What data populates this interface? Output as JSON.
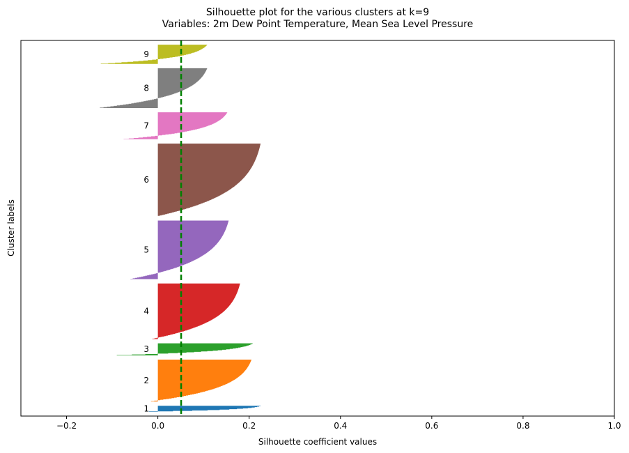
{
  "chart_data": {
    "type": "silhouette",
    "title_line1": "Silhouette plot for the various clusters at k=9",
    "title_line2": "Variables: 2m Dew Point Temperature, Mean Sea Level Pressure",
    "xlabel": "Silhouette coefficient values",
    "ylabel": "Cluster labels",
    "xlim": [
      -0.3,
      1.0
    ],
    "xticks": [
      -0.2,
      0.0,
      0.2,
      0.4,
      0.6,
      0.8,
      1.0
    ],
    "xtick_labels": [
      "−0.2",
      "0.0",
      "0.2",
      "0.4",
      "0.6",
      "0.8",
      "1.0"
    ],
    "average_silhouette": 0.051,
    "average_line_color": "#008000",
    "clusters": [
      {
        "label": "1",
        "color": "#1f77b4",
        "max": 0.225,
        "min": -0.02,
        "size": 14
      },
      {
        "label": "2",
        "color": "#ff7f0e",
        "max": 0.205,
        "min": -0.015,
        "size": 98
      },
      {
        "label": "3",
        "color": "#2ca02c",
        "max": 0.208,
        "min": -0.09,
        "size": 28
      },
      {
        "label": "4",
        "color": "#d62728",
        "max": 0.18,
        "min": -0.012,
        "size": 130
      },
      {
        "label": "5",
        "color": "#9467bd",
        "max": 0.155,
        "min": -0.06,
        "size": 137
      },
      {
        "label": "6",
        "color": "#8c564b",
        "max": 0.225,
        "min": 0.0,
        "size": 170
      },
      {
        "label": "7",
        "color": "#e377c2",
        "max": 0.152,
        "min": -0.075,
        "size": 63
      },
      {
        "label": "8",
        "color": "#7f7f7f",
        "max": 0.108,
        "min": -0.127,
        "size": 93
      },
      {
        "label": "9",
        "color": "#bcbd22",
        "max": 0.108,
        "min": -0.125,
        "size": 45
      }
    ]
  }
}
